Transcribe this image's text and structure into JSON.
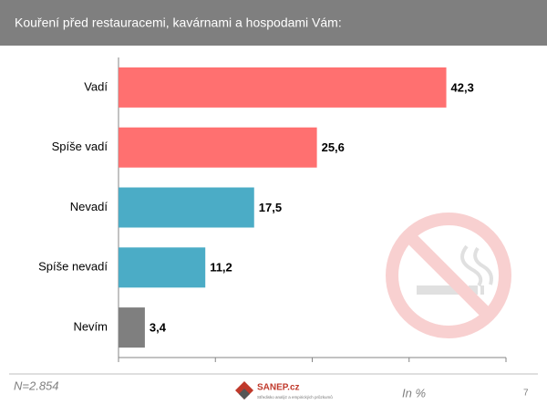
{
  "chart_data": {
    "type": "hbar",
    "title": "Kouření před restauracemi, kavárnami a hospodami Vám:",
    "categories": [
      "Vadí",
      "Spíše vadí",
      "Nevadí",
      "Spíše nevadí",
      "Nevím"
    ],
    "values": [
      42.3,
      25.6,
      17.5,
      11.2,
      3.4
    ],
    "value_labels": [
      "42,3",
      "25,6",
      "17,5",
      "11,2",
      "3,4"
    ],
    "colors": [
      "#ff7070",
      "#ff7070",
      "#4bacc6",
      "#4bacc6",
      "#7f7f7f"
    ],
    "xlim": [
      0,
      50
    ],
    "xticks": [
      0,
      12.5,
      25,
      37.5,
      50
    ]
  },
  "footer": {
    "sample": "N=2.854",
    "logo": "SANEP.cz",
    "tagline": "Středisko analýz a empirických průzkumů",
    "unit": "In %",
    "page": "7"
  }
}
